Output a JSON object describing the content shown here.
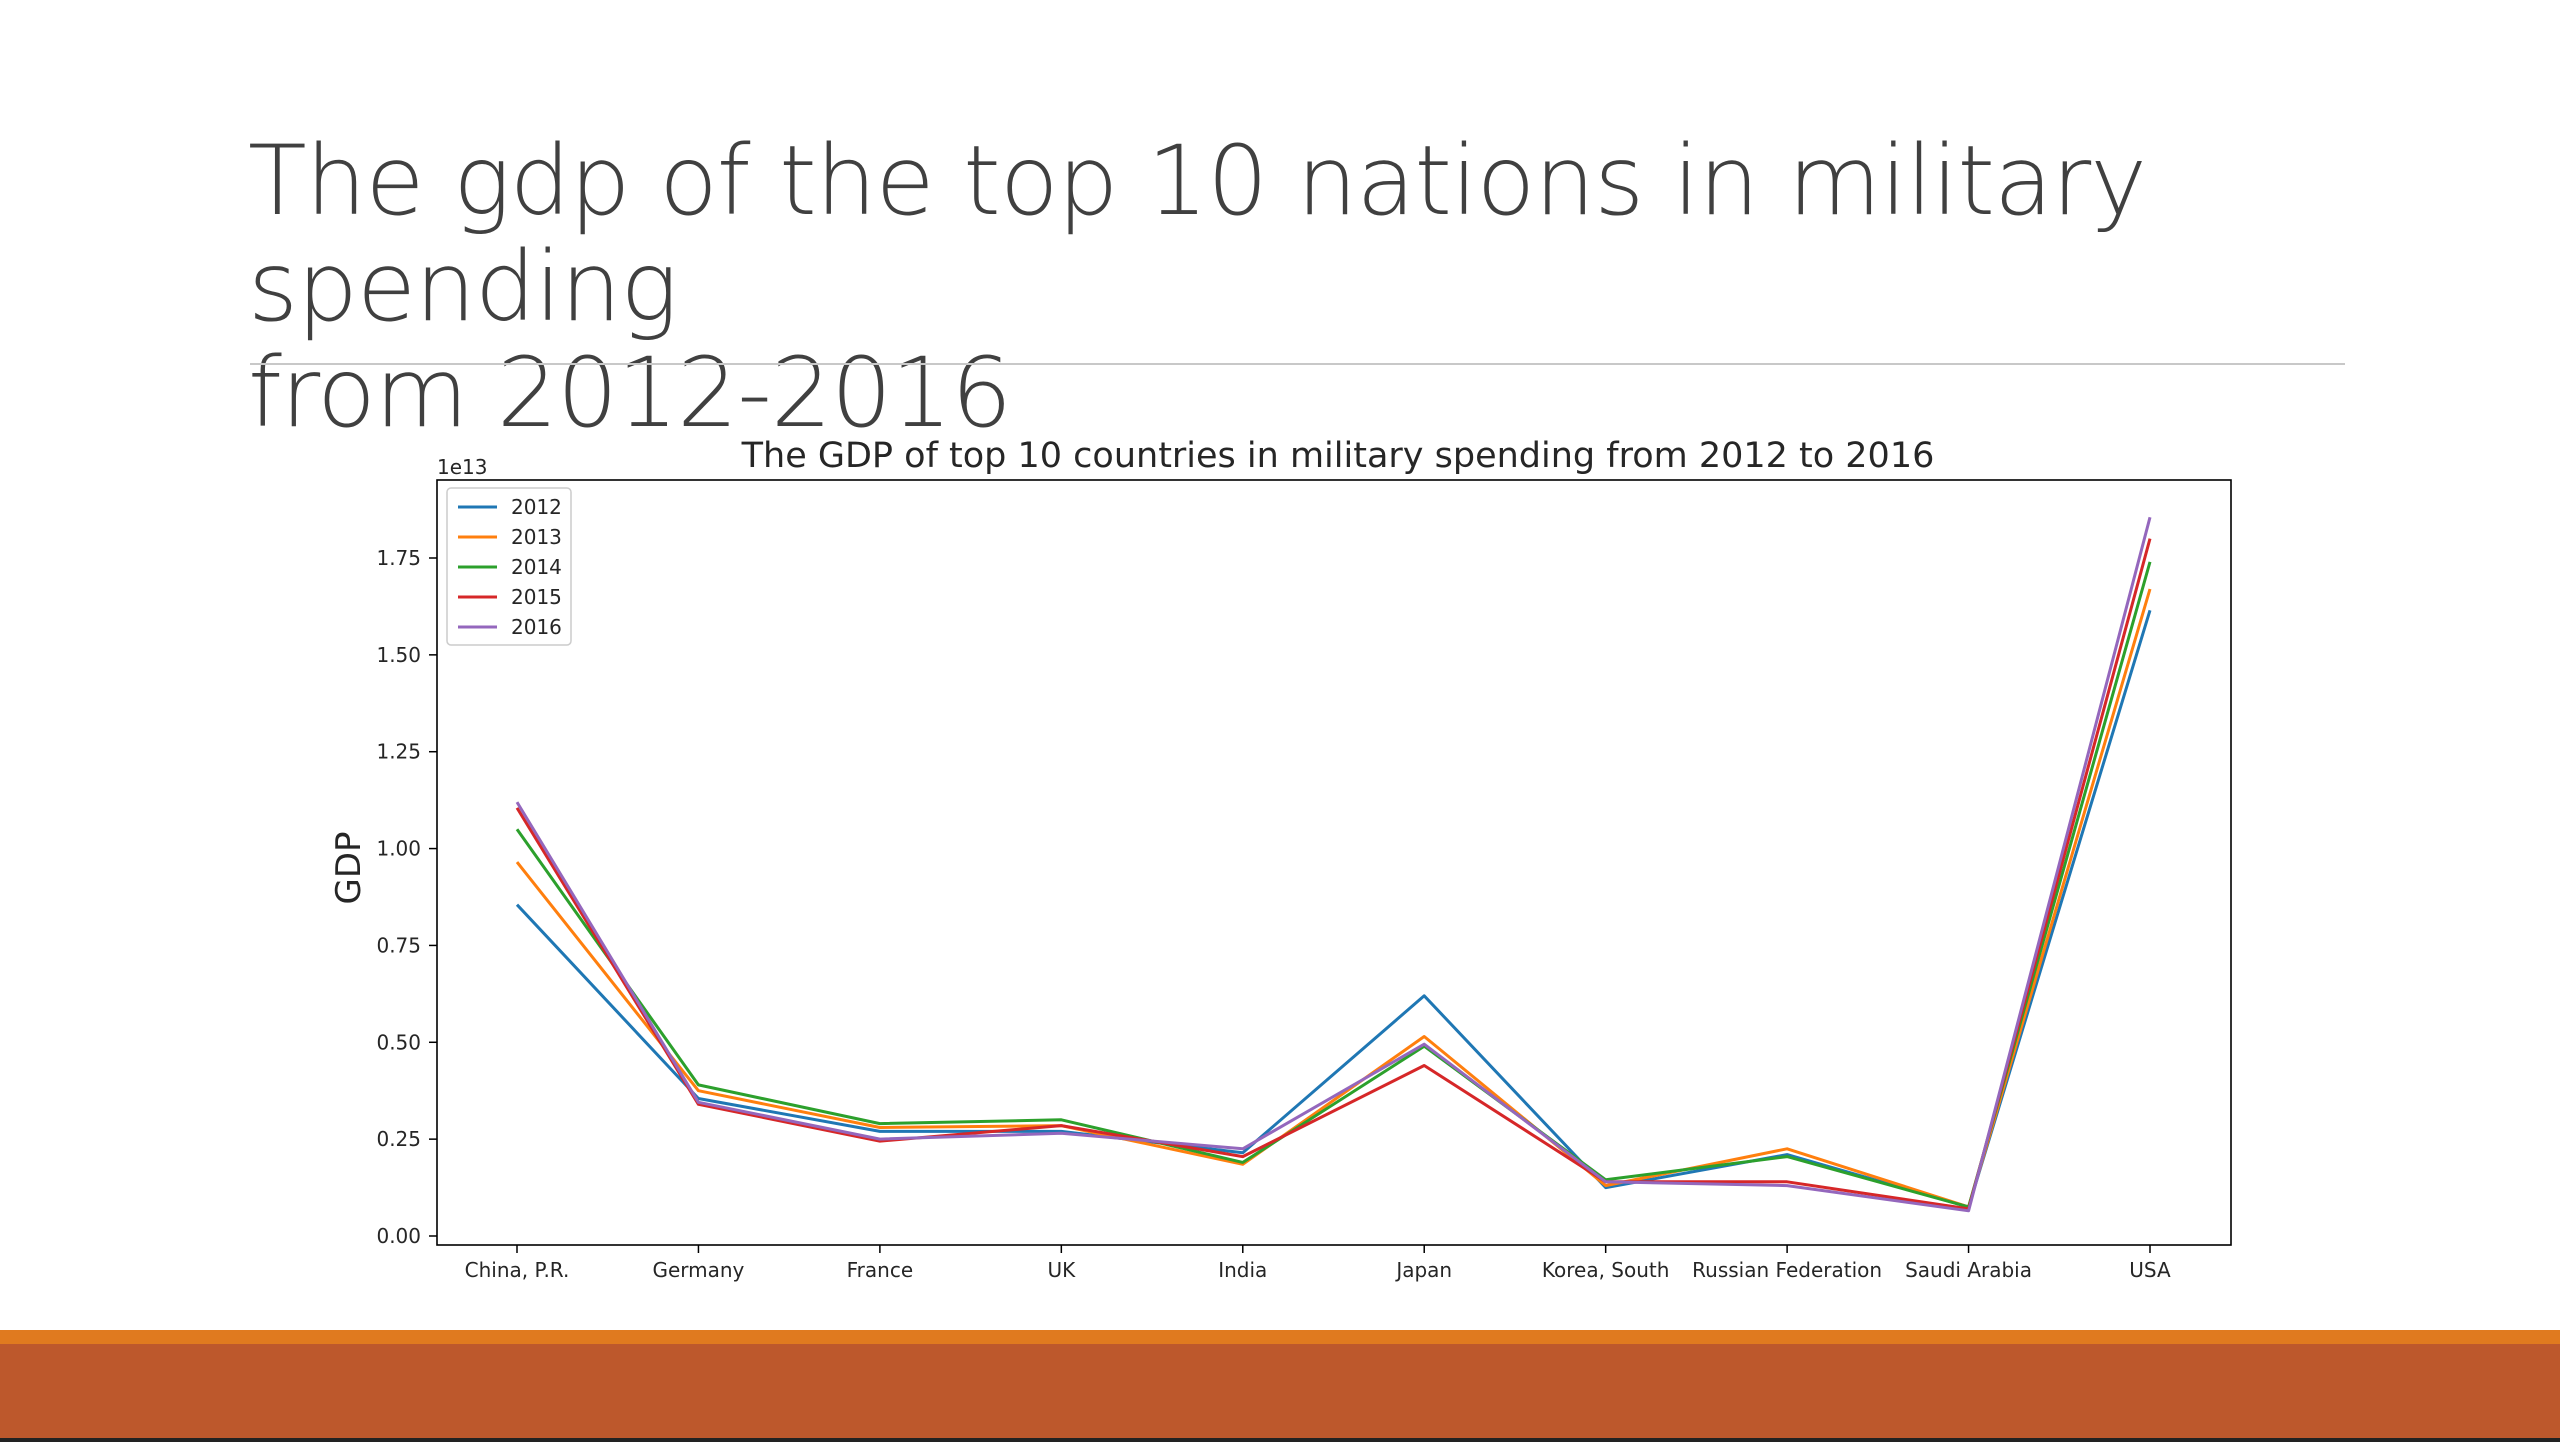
{
  "slide": {
    "title_line1": "The gdp of the top 10 nations in military spending",
    "title_line2": "from 2012-2016"
  },
  "colors": {
    "footer_thin": "#e07a1f",
    "footer_bar": "#bd582c"
  },
  "chart_data": {
    "type": "line",
    "title": "The GDP of top 10 countries in military spending from 2012 to 2016",
    "ylabel": "GDP",
    "xlabel": "",
    "y_offset_label": "1e13",
    "ylim": [
      0.0,
      1.95
    ],
    "yticks": [
      "0.00",
      "0.25",
      "0.50",
      "0.75",
      "1.00",
      "1.25",
      "1.50",
      "1.75"
    ],
    "grid": false,
    "legend_position": "top-left",
    "categories": [
      "China, P.R.",
      "Germany",
      "France",
      "UK",
      "India",
      "Japan",
      "Korea, South",
      "Russian Federation",
      "Saudi Arabia",
      "USA"
    ],
    "series": [
      {
        "name": "2012",
        "color": "#1f77b4",
        "values": [
          0.855,
          0.355,
          0.27,
          0.27,
          0.215,
          0.62,
          0.125,
          0.21,
          0.075,
          1.615
        ]
      },
      {
        "name": "2013",
        "color": "#ff7f0e",
        "values": [
          0.965,
          0.375,
          0.28,
          0.285,
          0.185,
          0.515,
          0.13,
          0.225,
          0.075,
          1.67
        ]
      },
      {
        "name": "2014",
        "color": "#2ca02c",
        "values": [
          1.05,
          0.39,
          0.29,
          0.3,
          0.19,
          0.49,
          0.145,
          0.205,
          0.075,
          1.74
        ]
      },
      {
        "name": "2015",
        "color": "#d62728",
        "values": [
          1.105,
          0.34,
          0.245,
          0.285,
          0.205,
          0.44,
          0.14,
          0.14,
          0.07,
          1.8
        ]
      },
      {
        "name": "2016",
        "color": "#9467bd",
        "values": [
          1.12,
          0.345,
          0.25,
          0.265,
          0.225,
          0.495,
          0.14,
          0.13,
          0.065,
          1.855
        ]
      }
    ]
  }
}
